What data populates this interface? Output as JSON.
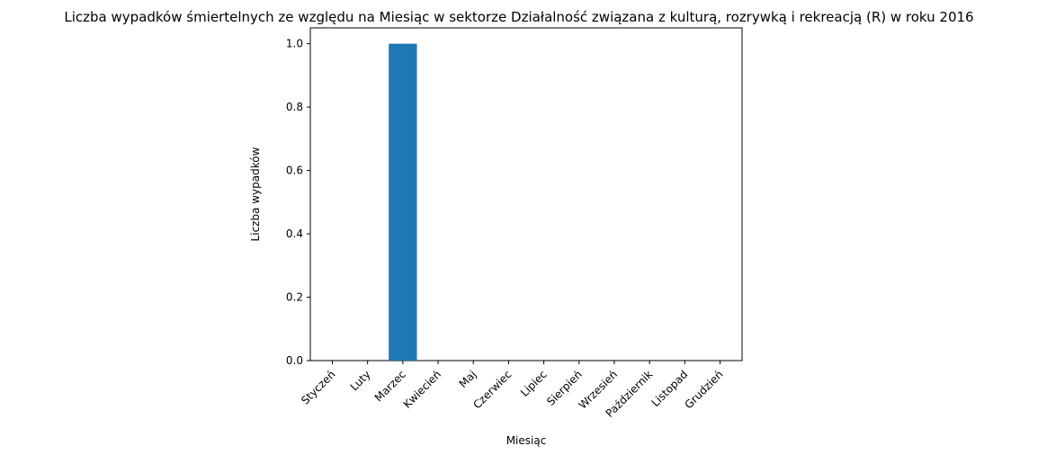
{
  "chart_data": {
    "type": "bar",
    "title": "Liczba wypadków śmiertelnych ze względu na Miesiąc w sektorze Działalność związana z kulturą, rozrywką i rekreacją  (R) w roku 2016",
    "xlabel": "Miesiąc",
    "ylabel": "Liczba wypadków",
    "categories": [
      "Styczeń",
      "Luty",
      "Marzec",
      "Kwiecień",
      "Maj",
      "Czerwiec",
      "Lipiec",
      "Sierpień",
      "Wrzesień",
      "Październik",
      "Listopad",
      "Grudzień"
    ],
    "values": [
      0,
      0,
      1,
      0,
      0,
      0,
      0,
      0,
      0,
      0,
      0,
      0
    ],
    "ylim": [
      0,
      1.05
    ],
    "yticks": [
      0.0,
      0.2,
      0.4,
      0.6,
      0.8,
      1.0
    ],
    "ytick_labels": [
      "0.0",
      "0.2",
      "0.4",
      "0.6",
      "0.8",
      "1.0"
    ],
    "bar_color": "#1f77b4",
    "grid": false,
    "legend": "none"
  }
}
